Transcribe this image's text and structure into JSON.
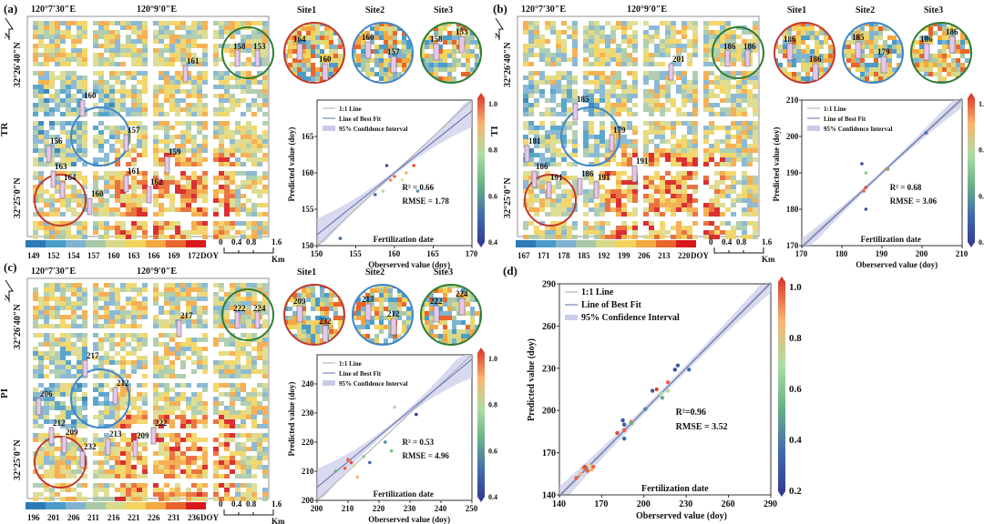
{
  "coords": {
    "lon1": "120°7′30″E",
    "lon2": "120°9′0″E",
    "lat1": "32°26′40″N",
    "lat2": "32°25′0″N",
    "north": "N"
  },
  "sites": [
    "Site1",
    "Site2",
    "Site3"
  ],
  "scalebar": {
    "ticks": [
      "0",
      "0.4",
      "0.8",
      "1.6"
    ],
    "unit": "Km"
  },
  "colorbar_unit": "DOY",
  "vertical_colorbar_ticks": [
    "0.2",
    "0.4",
    "0.6",
    "0.8",
    "1.0"
  ],
  "panels": [
    {
      "id": "a",
      "label": "(a)",
      "row_label": "TR",
      "map_labels": [
        "161",
        "160",
        "157",
        "156",
        "163",
        "164",
        "160",
        "161",
        "162",
        "159"
      ],
      "site_labels": [
        [
          "164",
          "160"
        ],
        [
          "160",
          "157"
        ],
        [
          "158",
          "153"
        ]
      ],
      "green_circle_labels": [
        "158",
        "153"
      ],
      "colorbar_ticks": [
        "149",
        "152",
        "154",
        "157",
        "160",
        "163",
        "166",
        "169",
        "172"
      ],
      "colors": [
        "#2c7bb6",
        "#4a9cc9",
        "#7fb3cf",
        "#a8c9a8",
        "#d9d98a",
        "#f2d35c",
        "#f5a742",
        "#e8652c",
        "#d7191c"
      ]
    },
    {
      "id": "b",
      "label": "(b)",
      "row_label": "TI",
      "map_labels": [
        "201",
        "185",
        "179",
        "181",
        "186",
        "191",
        "186",
        "191",
        "191"
      ],
      "site_labels": [
        [
          "186",
          "186"
        ],
        [
          "185",
          "179"
        ],
        [
          "186",
          "186"
        ]
      ],
      "green_circle_labels": [
        "186",
        "186"
      ],
      "colorbar_ticks": [
        "167",
        "171",
        "178",
        "185",
        "192",
        "199",
        "206",
        "213",
        "220"
      ],
      "colors": [
        "#2c7bb6",
        "#4a9cc9",
        "#7fb3cf",
        "#a8c9a8",
        "#d9d98a",
        "#f2d35c",
        "#f5a742",
        "#e8652c",
        "#d7191c"
      ]
    },
    {
      "id": "c",
      "label": "(c)",
      "row_label": "PI",
      "map_labels": [
        "217",
        "217",
        "212",
        "206",
        "212",
        "209",
        "232",
        "213",
        "209",
        "222"
      ],
      "site_labels": [
        [
          "209",
          "232"
        ],
        [
          "217",
          "212"
        ],
        [
          "222",
          "224"
        ]
      ],
      "green_circle_labels": [
        "222",
        "224"
      ],
      "colorbar_ticks": [
        "196",
        "201",
        "206",
        "211",
        "216",
        "221",
        "226",
        "231",
        "236"
      ],
      "colors": [
        "#2c7bb6",
        "#4a9cc9",
        "#7fb3cf",
        "#a8c9a8",
        "#d9d98a",
        "#f2d35c",
        "#f5a742",
        "#e8652c",
        "#d7191c"
      ]
    }
  ],
  "chart_data": [
    {
      "panel": "a",
      "type": "scatter",
      "title": "Fertilization date",
      "xlabel": "Oberserved value (doy)",
      "ylabel": "Predicted value (doy)",
      "xlim": [
        150,
        170
      ],
      "ylim": [
        150,
        170
      ],
      "xticks": [
        150,
        155,
        160,
        165,
        170
      ],
      "yticks": [
        150,
        155,
        160,
        165
      ],
      "legend": [
        "1:1 Line",
        "Line of Best Fit",
        "95% Confidence Interval"
      ],
      "legend_position": "top-left",
      "x": [
        153.0,
        157.5,
        158.5,
        159.0,
        159.5,
        160.0,
        161.5,
        162.5,
        163.0,
        161.0
      ],
      "y": [
        151.0,
        157.0,
        157.5,
        161.0,
        159.0,
        159.5,
        160.0,
        161.0,
        157.5,
        159.0
      ],
      "c": [
        0.15,
        0.2,
        0.6,
        0.1,
        0.85,
        0.9,
        0.8,
        0.95,
        0.3,
        0.7
      ],
      "best_fit": [
        [
          150,
          151.5
        ],
        [
          170,
          168.5
        ]
      ],
      "stats": [
        "R² = 0.66",
        "RMSE = 1.78"
      ]
    },
    {
      "panel": "b",
      "type": "scatter",
      "title": "Fertilization date",
      "xlabel": "Oberserved value (doy)",
      "ylabel": "Predicted value (doy)",
      "xlim": [
        170,
        210
      ],
      "ylim": [
        170,
        210
      ],
      "xticks": [
        170,
        180,
        190,
        200,
        210
      ],
      "yticks": [
        170,
        180,
        190,
        200,
        210
      ],
      "legend": [
        "1:1 Line",
        "Line of Best Fit",
        "95% Confidence Interval"
      ],
      "legend_position": "top-left",
      "x": [
        185.0,
        186.0,
        186.0,
        186.0,
        191.0,
        191.5,
        201.0,
        185.5
      ],
      "y": [
        192.5,
        190.0,
        180.0,
        186.0,
        191.0,
        191.0,
        201.0,
        185.0
      ],
      "c": [
        0.1,
        0.5,
        0.1,
        0.95,
        0.85,
        0.4,
        0.2,
        0.9
      ],
      "best_fit": [
        [
          170,
          169.5
        ],
        [
          210,
          210.5
        ]
      ],
      "stats": [
        "R² = 0.68",
        "RMSE = 3.06"
      ]
    },
    {
      "panel": "c",
      "type": "scatter",
      "title": "Fertilization date",
      "xlabel": "Oberserved value (doy)",
      "ylabel": "Predicted value (doy)",
      "xlim": [
        200,
        250
      ],
      "ylim": [
        200,
        250
      ],
      "xticks": [
        200,
        210,
        220,
        230,
        240,
        250
      ],
      "yticks": [
        200,
        210,
        220,
        230,
        240
      ],
      "legend": [
        "1:1 Line",
        "Line of Best Fit",
        "95% Confidence Interval"
      ],
      "legend_position": "top-left",
      "x": [
        209.0,
        211.0,
        212.0,
        213.0,
        215.0,
        217.0,
        222.0,
        224.0,
        225.0,
        232.0,
        206.0,
        210.0
      ],
      "y": [
        211.0,
        213.0,
        212.0,
        208.0,
        215.0,
        213.0,
        220.0,
        217.0,
        232.0,
        229.5,
        210.0,
        214.0
      ],
      "c": [
        0.9,
        0.95,
        0.7,
        0.8,
        0.5,
        0.2,
        0.3,
        0.45,
        0.6,
        0.05,
        0.4,
        0.9
      ],
      "best_fit": [
        [
          200,
          204.5
        ],
        [
          250,
          248.5
        ]
      ],
      "stats": [
        "R² = 0.53",
        "RMSE = 4.96"
      ]
    },
    {
      "panel": "d",
      "type": "scatter",
      "title": "Fertilization date",
      "xlabel": "Oberserved value (doy)",
      "ylabel": "Predicted value (doy)",
      "xlim": [
        140,
        290
      ],
      "ylim": [
        140,
        290
      ],
      "xticks": [
        140,
        170,
        200,
        230,
        260,
        290
      ],
      "yticks": [
        140,
        170,
        200,
        230,
        260,
        290
      ],
      "legend": [
        "1:1 Line",
        "Line of Best Fit",
        "95% Confidence Interval"
      ],
      "legend_position": "top-left",
      "x": [
        152,
        155,
        157,
        158,
        160,
        161,
        163,
        164,
        181,
        185,
        186,
        186,
        186,
        191,
        191,
        201,
        206,
        209,
        212,
        213,
        217,
        217,
        222,
        224,
        232
      ],
      "y": [
        152,
        155,
        159,
        160,
        157,
        161,
        158,
        160,
        184,
        193,
        190,
        180,
        186,
        192,
        191,
        201,
        214,
        215,
        212,
        209,
        220,
        214,
        229,
        232,
        229
      ],
      "c": [
        0.9,
        0.8,
        0.85,
        0.95,
        0.9,
        0.7,
        0.8,
        0.9,
        0.95,
        0.1,
        0.15,
        0.2,
        0.9,
        0.85,
        0.4,
        0.3,
        0.15,
        0.95,
        0.6,
        0.4,
        0.9,
        0.6,
        0.1,
        0.15,
        0.2
      ],
      "best_fit": [
        [
          140,
          139
        ],
        [
          290,
          291
        ]
      ],
      "stats": [
        "R²=0.96",
        "RMSE = 3.52"
      ]
    }
  ]
}
